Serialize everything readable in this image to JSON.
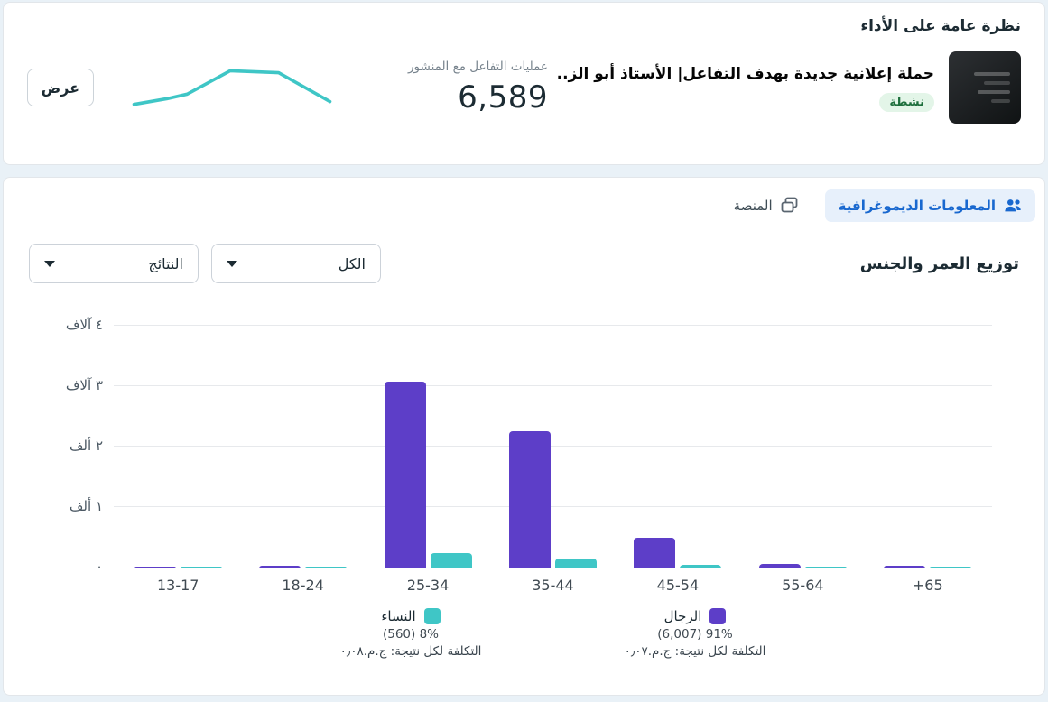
{
  "overview_card": {
    "title": "نظرة عامة على الأداء",
    "campaign": {
      "name": "حملة إعلانية جديدة بهدف التفاعل| الأستاذ أبو الز...",
      "status": "نشطة"
    },
    "metric": {
      "label": "عمليات التفاعل مع المنشور",
      "value": "6,589"
    },
    "view_button": "عرض"
  },
  "insights_card": {
    "tabs": [
      {
        "label": "المعلومات الديموغرافية",
        "icon": "people-icon",
        "active": true
      },
      {
        "label": "المنصة",
        "icon": "layers-icon",
        "active": false
      }
    ],
    "chart_title": "توزيع العمر والجنس",
    "filters": {
      "breakdown": "الكل",
      "metric": "النتائج"
    }
  },
  "chart_data": {
    "type": "bar",
    "title": "توزيع العمر والجنس",
    "categories": [
      "13-17",
      "18-24",
      "25-34",
      "35-44",
      "45-54",
      "55-64",
      "+65"
    ],
    "series": [
      {
        "name": "الرجال",
        "key": "men",
        "color": "#5d3ec8",
        "values": [
          30,
          45,
          3060,
          2255,
          505,
          70,
          42
        ],
        "total": "6,007",
        "share": "91% (6,007)",
        "cost_per_result": "التكلفة لكل نتيجة: ج.م.٠٫٠٧"
      },
      {
        "name": "النساء",
        "key": "women",
        "color": "#3fc6c6",
        "values": [
          15,
          25,
          255,
          160,
          60,
          25,
          20
        ],
        "total": "560",
        "share": "8% (560)",
        "cost_per_result": "التكلفة لكل نتيجة: ج.م.٠٫٠٨"
      }
    ],
    "y_ticks": [
      "٤ آلاف",
      "٣ آلاف",
      "٢ ألف",
      "١ ألف",
      "٠"
    ],
    "ylim": [
      0,
      4000
    ],
    "grid": true,
    "legend_position": "bottom"
  },
  "sparkline": {
    "color": "#3fc6c6",
    "points": [
      [
        5,
        50
      ],
      [
        40,
        44
      ],
      [
        62,
        39
      ],
      [
        108,
        14
      ],
      [
        160,
        16
      ],
      [
        215,
        47
      ]
    ]
  },
  "colors": {
    "accent_blue": "#1968cf",
    "tab_pill_bg": "#e7f0fb",
    "badge_bg": "#e3f5e8",
    "badge_text": "#1e6f3d",
    "men_purple": "#5d3ec8",
    "women_teal": "#3fc6c6",
    "page_bg": "#e9f1f7"
  }
}
